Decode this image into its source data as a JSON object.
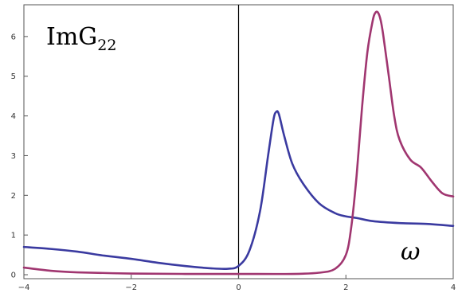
{
  "chart_data": {
    "type": "line",
    "title_main": "ImG",
    "title_sub": "22",
    "xlabel": "ω",
    "xlim": [
      -4,
      4
    ],
    "ylim": [
      -0.1,
      6.8
    ],
    "xticks": [
      -4,
      -2,
      0,
      2,
      4
    ],
    "yticks": [
      0,
      1,
      2,
      3,
      4,
      5,
      6
    ],
    "grid": false,
    "series": [
      {
        "color": "#3a3aa0",
        "x": [
          -4,
          -3.5,
          -3,
          -2.5,
          -2,
          -1.5,
          -1,
          -0.5,
          -0.2,
          0,
          0.2,
          0.4,
          0.55,
          0.65,
          0.7,
          0.75,
          0.85,
          1,
          1.2,
          1.5,
          1.8,
          2,
          2.2,
          2.5,
          3,
          3.5,
          4
        ],
        "y": [
          0.7,
          0.65,
          0.58,
          0.48,
          0.4,
          0.3,
          0.22,
          0.16,
          0.15,
          0.22,
          0.6,
          1.6,
          3.0,
          3.9,
          4.1,
          4.05,
          3.5,
          2.8,
          2.3,
          1.8,
          1.55,
          1.47,
          1.43,
          1.35,
          1.3,
          1.28,
          1.23
        ]
      },
      {
        "color": "#a03670",
        "x": [
          -4,
          -3.5,
          -3,
          -2,
          -1,
          0,
          1,
          1.5,
          1.8,
          2,
          2.1,
          2.2,
          2.3,
          2.4,
          2.5,
          2.55,
          2.6,
          2.65,
          2.7,
          2.8,
          2.9,
          3,
          3.2,
          3.4,
          3.6,
          3.8,
          4
        ],
        "y": [
          0.18,
          0.1,
          0.06,
          0.03,
          0.02,
          0.02,
          0.02,
          0.05,
          0.15,
          0.5,
          1.2,
          2.5,
          4.2,
          5.6,
          6.4,
          6.6,
          6.6,
          6.4,
          6.0,
          5.0,
          4.0,
          3.4,
          2.9,
          2.7,
          2.35,
          2.05,
          1.97
        ]
      }
    ]
  }
}
